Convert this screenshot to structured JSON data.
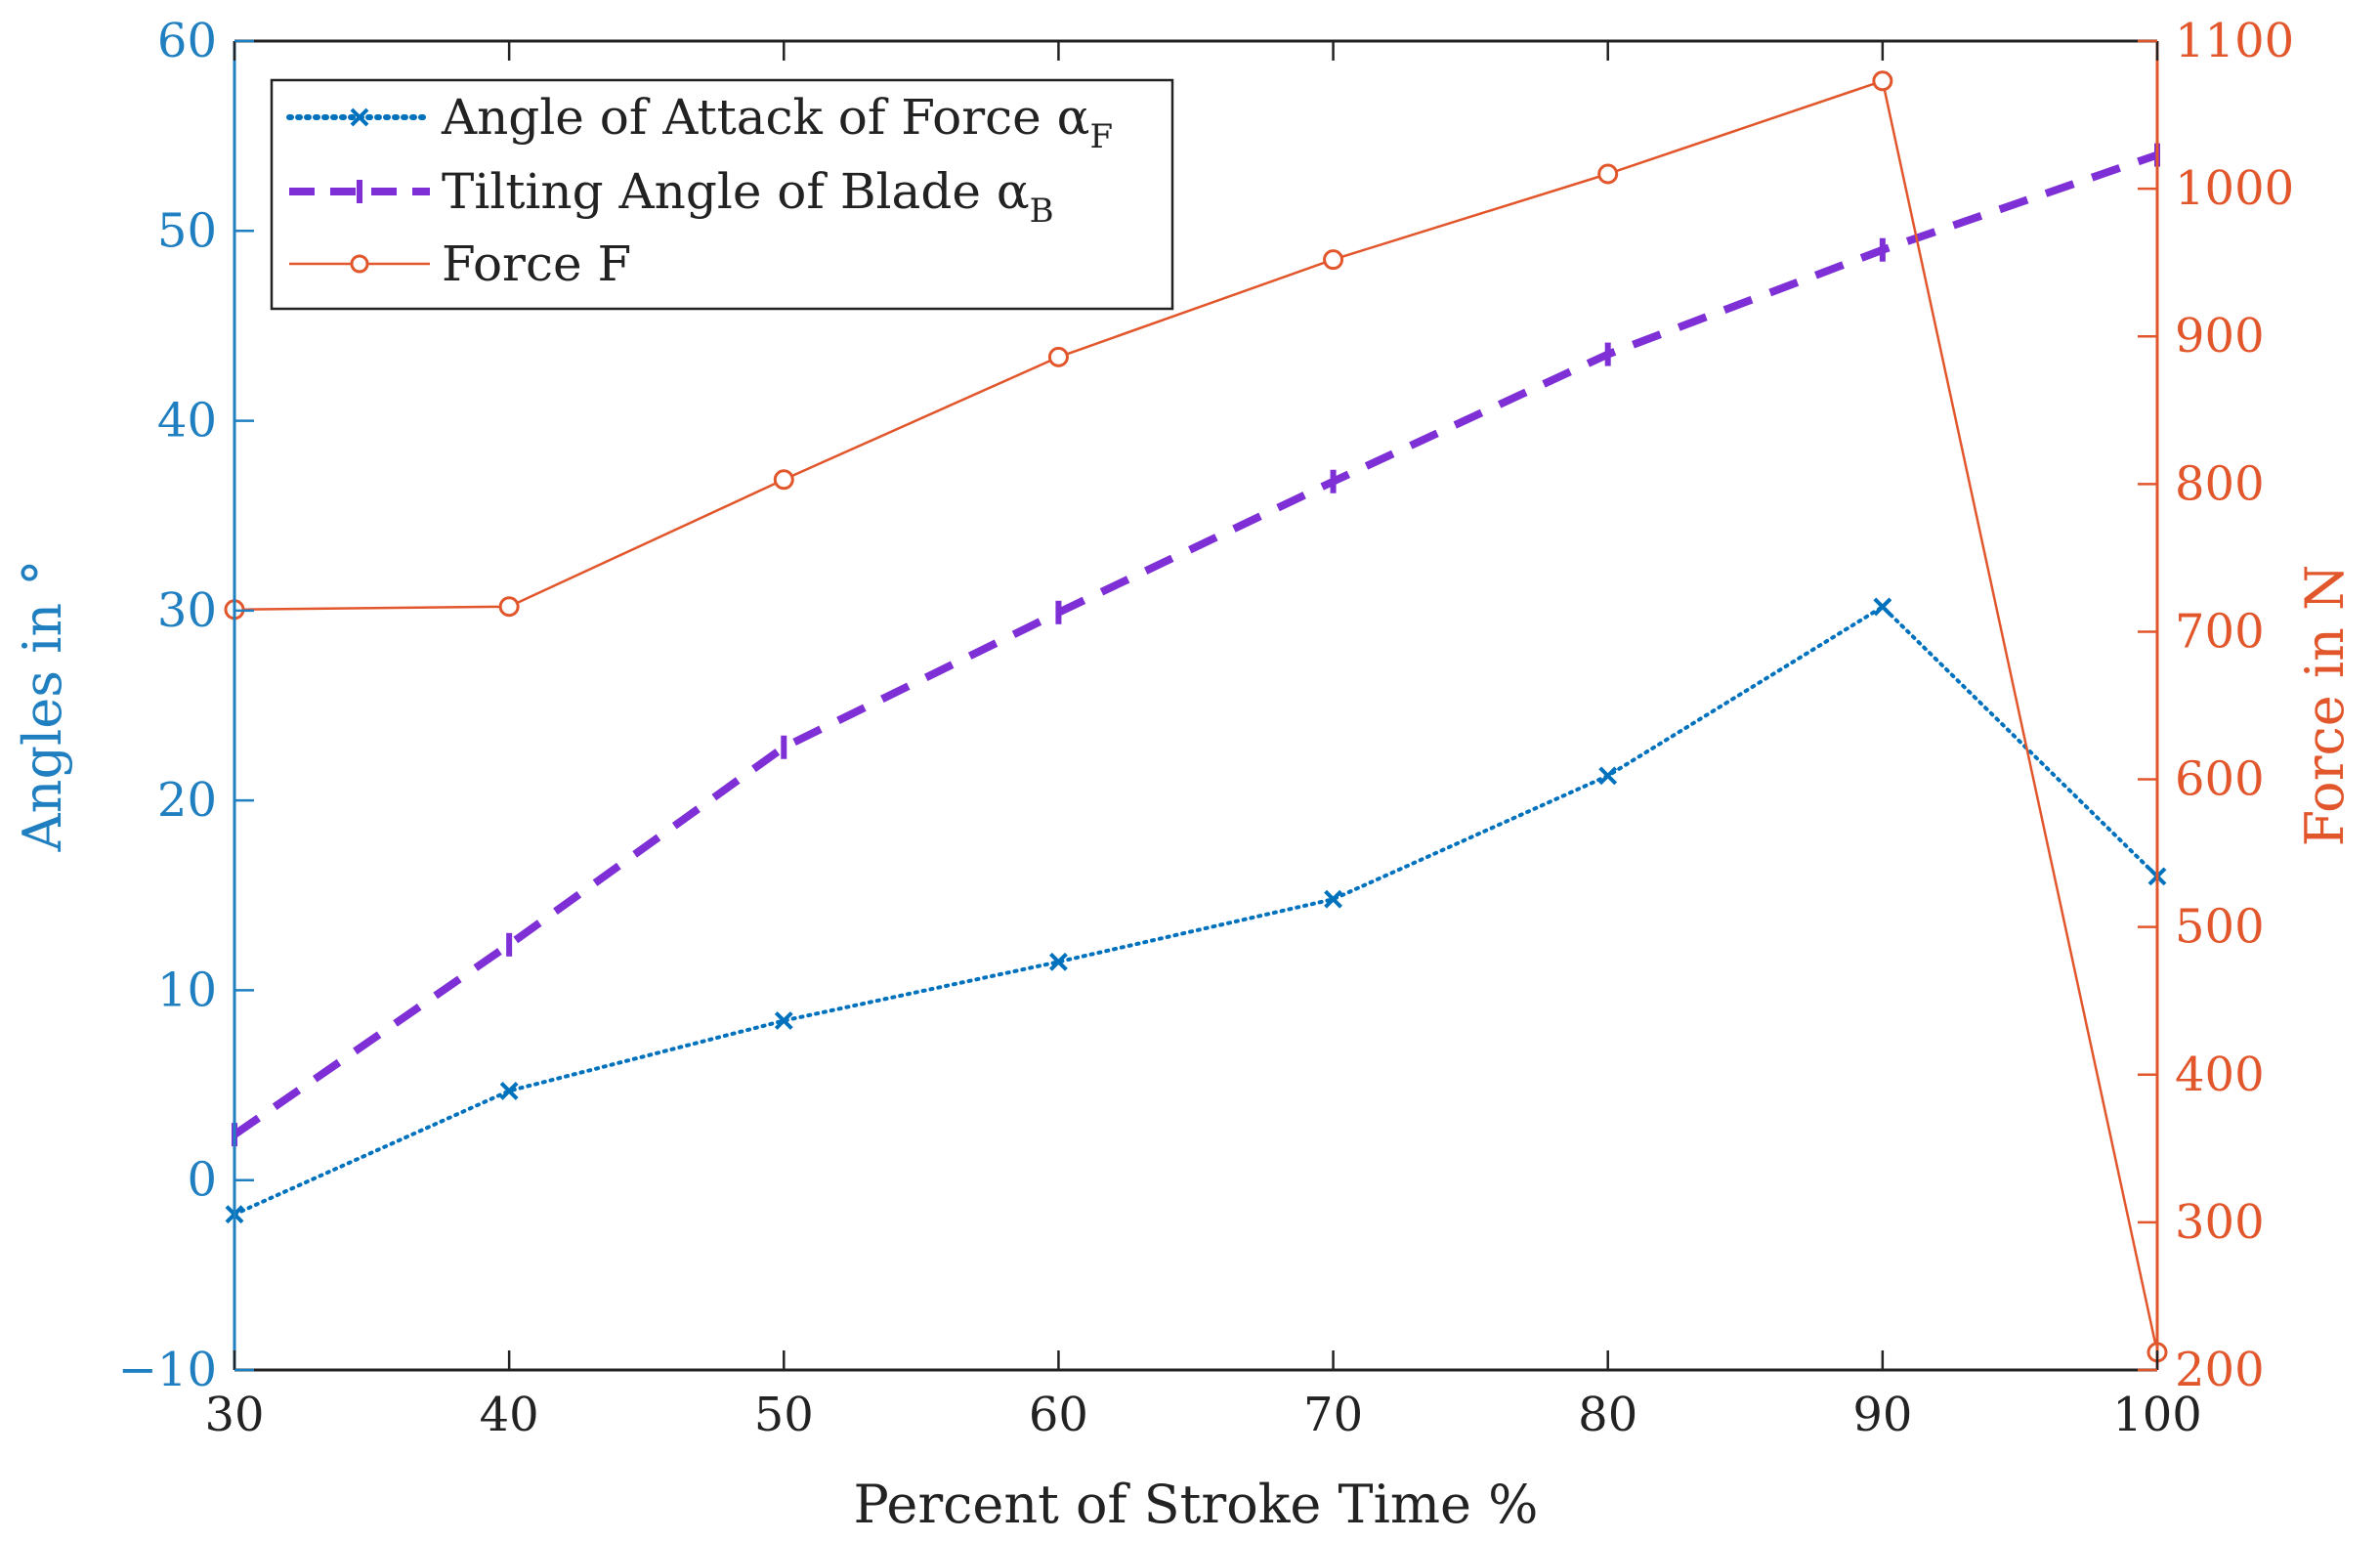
{
  "chart_data": {
    "type": "line",
    "title": "",
    "xlabel": "Percent of Stroke Time %",
    "ylabel_left": "Angles in °",
    "ylabel_right": "Force in N",
    "x": [
      30,
      40,
      50,
      60,
      70,
      80,
      90,
      100
    ],
    "xlim": [
      30,
      100
    ],
    "xticks": [
      30,
      40,
      50,
      60,
      70,
      80,
      90,
      100
    ],
    "ylim_left": [
      -10,
      60
    ],
    "yticks_left": [
      -10,
      0,
      10,
      20,
      30,
      40,
      50,
      60
    ],
    "ytick_labels_left": [
      "−10",
      "0",
      "10",
      "20",
      "30",
      "40",
      "50",
      "60"
    ],
    "ylim_right": [
      200,
      1100
    ],
    "yticks_right": [
      200,
      300,
      400,
      500,
      600,
      700,
      800,
      900,
      1000,
      1100
    ],
    "grid": false,
    "legend_position": "top-left",
    "series": [
      {
        "id": "af",
        "name_main": "Angle of Attack of Force α",
        "name_sub": "F",
        "axis": "left",
        "style": "dotted",
        "marker": "x",
        "color": "#0072BD",
        "values": [
          -1.8,
          4.7,
          8.4,
          11.5,
          14.8,
          21.3,
          30.2,
          16.0
        ]
      },
      {
        "id": "ab",
        "name_main": "Tilting Angle of Blade α",
        "name_sub": "B",
        "axis": "left",
        "style": "dashed",
        "marker": "tick",
        "color": "#7E2FD6",
        "values": [
          2.4,
          12.4,
          22.8,
          29.9,
          36.8,
          43.5,
          49.0,
          54.0
        ]
      },
      {
        "id": "force",
        "name_main": "Force F",
        "name_sub": "",
        "axis": "right",
        "style": "solid",
        "marker": "circle",
        "color": "#E2562C",
        "values": [
          715,
          717,
          803,
          886,
          952,
          1010,
          1073,
          212
        ]
      }
    ],
    "colors": {
      "left_axis": "#1F7FC0",
      "right_axis": "#E2562C",
      "bottom_axis": "#222222"
    }
  }
}
